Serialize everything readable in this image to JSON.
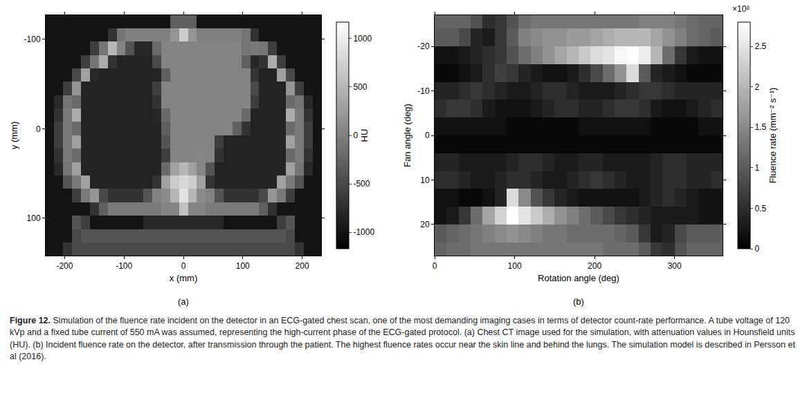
{
  "chart_data": [
    {
      "type": "heatmap",
      "label": "(a)",
      "x_label": "x (mm)",
      "y_label": "y (mm)",
      "color": "gray",
      "x": [
        -225,
        -210,
        -195,
        -180,
        -165,
        -150,
        -135,
        -120,
        -105,
        -90,
        -75,
        -60,
        -45,
        -30,
        -15,
        0,
        15,
        30,
        45,
        60,
        75,
        90,
        105,
        120,
        135,
        150,
        165,
        180,
        195,
        210,
        225
      ],
      "y": [
        -120,
        -105,
        -90,
        -75,
        -60,
        -45,
        -30,
        -15,
        0,
        15,
        30,
        45,
        60,
        75,
        90,
        105,
        120,
        135
      ],
      "cells": [
        [
          -1000,
          -1000,
          -1000,
          -1000,
          -1000,
          -1000,
          -1000,
          -1000,
          -1000,
          -1000,
          -1000,
          -1000,
          -1000,
          -1000,
          -300,
          -300,
          -300,
          -1000,
          -1000,
          -1000,
          -1000,
          -1000,
          -1000,
          -1000,
          -1000,
          -1000,
          -1000,
          -1000,
          -1000,
          -1000,
          -1000
        ],
        [
          -1000,
          -1000,
          -1000,
          -1000,
          -1000,
          -1000,
          -1000,
          -700,
          -100,
          0,
          0,
          0,
          0,
          0,
          200,
          700,
          200,
          0,
          0,
          0,
          0,
          0,
          -100,
          -700,
          -1000,
          -1000,
          -1000,
          -1000,
          -1000,
          -1000,
          -1000
        ],
        [
          -1000,
          -1000,
          -1000,
          -1000,
          -1000,
          -600,
          -100,
          500,
          40,
          -400,
          -800,
          -800,
          -200,
          40,
          40,
          40,
          40,
          40,
          40,
          40,
          40,
          40,
          -100,
          -50,
          -100,
          -600,
          -1000,
          -1000,
          -1000,
          -1000,
          -1000
        ],
        [
          -1000,
          -1000,
          -1000,
          -1000,
          -600,
          -100,
          400,
          -700,
          -850,
          -850,
          -850,
          -850,
          -500,
          40,
          40,
          40,
          40,
          40,
          40,
          40,
          40,
          40,
          -300,
          -800,
          -700,
          400,
          -600,
          -1000,
          -1000,
          -1000,
          -1000
        ],
        [
          -1000,
          -1000,
          -1000,
          -500,
          300,
          -800,
          -850,
          -850,
          -850,
          -850,
          -850,
          -850,
          -850,
          -300,
          40,
          40,
          40,
          40,
          40,
          40,
          40,
          40,
          40,
          -700,
          -850,
          -850,
          300,
          -500,
          -1000,
          -1000,
          -1000
        ],
        [
          -1000,
          -1000,
          -600,
          200,
          -850,
          -850,
          -850,
          -850,
          -850,
          -850,
          -850,
          -850,
          -600,
          40,
          40,
          40,
          40,
          40,
          40,
          40,
          40,
          40,
          40,
          -500,
          -850,
          -850,
          -850,
          200,
          -600,
          -1000,
          -1000
        ],
        [
          -1000,
          -800,
          -100,
          -200,
          -850,
          -850,
          -850,
          -850,
          -850,
          -850,
          -850,
          -850,
          -700,
          40,
          40,
          40,
          40,
          40,
          40,
          40,
          40,
          40,
          40,
          -600,
          -850,
          -850,
          -850,
          -200,
          -100,
          -800,
          -1000
        ],
        [
          -1000,
          -700,
          -50,
          400,
          -850,
          -850,
          -850,
          -850,
          -850,
          -850,
          -850,
          -850,
          -800,
          -200,
          40,
          40,
          40,
          40,
          40,
          40,
          40,
          40,
          -200,
          -850,
          -850,
          -850,
          -850,
          400,
          -50,
          -700,
          -1000
        ],
        [
          -1000,
          -600,
          -50,
          -200,
          -850,
          -850,
          -850,
          -850,
          -850,
          -850,
          -850,
          -850,
          -850,
          -300,
          40,
          40,
          40,
          40,
          40,
          40,
          40,
          -300,
          -700,
          -850,
          -850,
          -850,
          -850,
          -200,
          -50,
          -600,
          -1000
        ],
        [
          -1000,
          -600,
          -50,
          300,
          -850,
          -850,
          -850,
          -850,
          -850,
          -850,
          -850,
          -850,
          -850,
          -400,
          40,
          40,
          40,
          40,
          40,
          -600,
          -850,
          -850,
          -850,
          -850,
          -850,
          -850,
          -850,
          300,
          -50,
          -600,
          -1000
        ],
        [
          -1000,
          -700,
          -50,
          -200,
          -850,
          -850,
          -850,
          -850,
          -850,
          -850,
          -850,
          -850,
          -850,
          -600,
          40,
          40,
          40,
          60,
          40,
          -700,
          -850,
          -850,
          -850,
          -850,
          -850,
          -850,
          -850,
          -200,
          -50,
          -700,
          -1000
        ],
        [
          -1000,
          -800,
          -100,
          300,
          -850,
          -850,
          -850,
          -850,
          -850,
          -850,
          -850,
          -850,
          -850,
          -200,
          300,
          500,
          300,
          60,
          -400,
          -850,
          -850,
          -850,
          -850,
          -850,
          -850,
          -850,
          -850,
          300,
          -100,
          -800,
          -1000
        ],
        [
          -1000,
          -1000,
          -400,
          -50,
          300,
          -850,
          -850,
          -850,
          -850,
          -850,
          -850,
          -850,
          -700,
          300,
          700,
          800,
          700,
          300,
          -700,
          -850,
          -850,
          -850,
          -850,
          -850,
          -850,
          -850,
          300,
          -50,
          -400,
          -1000,
          -1000
        ],
        [
          -1000,
          -1000,
          -1000,
          -600,
          -50,
          200,
          -500,
          -700,
          -700,
          -700,
          -700,
          -400,
          40,
          100,
          500,
          900,
          500,
          100,
          40,
          -400,
          -700,
          -700,
          -700,
          -700,
          -500,
          200,
          -50,
          -600,
          -1000,
          -1000,
          -1000
        ],
        [
          -1000,
          -1000,
          -1000,
          -1000,
          -1000,
          -700,
          -300,
          -50,
          -50,
          -50,
          -50,
          -50,
          -50,
          40,
          40,
          600,
          40,
          40,
          -50,
          -50,
          -50,
          -50,
          -50,
          -50,
          -300,
          -700,
          -1000,
          -1000,
          -1000,
          -1000,
          -1000
        ],
        [
          -1000,
          -1000,
          -1000,
          -400,
          -600,
          -1000,
          -1000,
          -1000,
          -1000,
          -1000,
          -1000,
          -800,
          -800,
          -800,
          -800,
          -800,
          -800,
          -800,
          -800,
          -800,
          -1000,
          -1000,
          -1000,
          -1000,
          -1000,
          -1000,
          -600,
          -400,
          -1000,
          -1000,
          -1000
        ],
        [
          -1000,
          -1000,
          -1000,
          -500,
          -400,
          -400,
          -400,
          -400,
          -400,
          -400,
          -400,
          -400,
          -400,
          -400,
          -400,
          -400,
          -400,
          -400,
          -400,
          -400,
          -400,
          -400,
          -400,
          -400,
          -400,
          -400,
          -400,
          -500,
          -1000,
          -1000,
          -1000
        ],
        [
          -1000,
          -1000,
          -700,
          -500,
          -500,
          -500,
          -500,
          -500,
          -500,
          -500,
          -500,
          -500,
          -500,
          -500,
          -500,
          -500,
          -500,
          -500,
          -500,
          -500,
          -500,
          -500,
          -500,
          -500,
          -500,
          -500,
          -500,
          -500,
          -700,
          -1000,
          -1000
        ]
      ],
      "xlim": [
        -232,
        232
      ],
      "ylim": [
        142,
        -127
      ],
      "xticks": [
        -200,
        -100,
        0,
        100,
        200
      ],
      "yticks": [
        -100,
        0,
        100
      ],
      "colorbar": {
        "title": "HU",
        "range": [
          -1170,
          1170
        ],
        "ticks": [
          -1000,
          -500,
          0,
          500,
          1000
        ]
      }
    },
    {
      "type": "heatmap",
      "label": "(b)",
      "x_label": "Rotation angle (deg)",
      "y_label": "Fan angle (deg)",
      "color": "gray",
      "x": [
        7.5,
        22.5,
        37.5,
        52.5,
        67.5,
        82.5,
        97.5,
        112.5,
        127.5,
        142.5,
        157.5,
        172.5,
        187.5,
        202.5,
        217.5,
        232.5,
        247.5,
        262.5,
        277.5,
        292.5,
        307.5,
        322.5,
        337.5,
        352.5
      ],
      "y": [
        -26,
        -22,
        -18,
        -14,
        -10,
        -6,
        -2,
        2,
        6,
        10,
        14,
        18,
        22,
        26
      ],
      "cells": [
        [
          1.1,
          1.1,
          1.1,
          0.9,
          0.5,
          0.6,
          0.9,
          1.2,
          1.3,
          1.3,
          1.3,
          1.3,
          1.3,
          1.3,
          1.3,
          1.3,
          1.3,
          1.4,
          1.4,
          1.4,
          1.3,
          1.2,
          1.1,
          1.1
        ],
        [
          1.0,
          1.0,
          0.8,
          0.4,
          0.3,
          0.6,
          1.0,
          1.4,
          1.5,
          1.6,
          1.6,
          1.7,
          1.7,
          1.8,
          1.9,
          2.0,
          2.0,
          2.0,
          1.8,
          1.6,
          1.4,
          1.2,
          1.1,
          1.0
        ],
        [
          0.2,
          0.2,
          0.3,
          0.4,
          0.5,
          0.6,
          0.9,
          1.2,
          1.4,
          1.6,
          1.8,
          2.0,
          2.2,
          2.4,
          2.5,
          2.7,
          2.8,
          2.6,
          2.0,
          1.2,
          0.6,
          0.3,
          0.2,
          0.2
        ],
        [
          0.1,
          0.1,
          0.2,
          0.3,
          0.5,
          0.7,
          0.6,
          0.4,
          0.3,
          0.2,
          0.2,
          0.3,
          0.5,
          0.8,
          1.2,
          1.6,
          2.4,
          1.0,
          0.4,
          0.3,
          0.2,
          0.1,
          0.1,
          0.1
        ],
        [
          0.4,
          0.4,
          0.5,
          0.6,
          0.5,
          0.4,
          0.3,
          0.3,
          0.4,
          0.5,
          0.5,
          0.4,
          0.3,
          0.3,
          0.3,
          0.4,
          0.5,
          0.6,
          0.6,
          0.5,
          0.4,
          0.4,
          0.4,
          0.4
        ],
        [
          0.5,
          0.6,
          0.6,
          0.5,
          0.3,
          0.2,
          0.2,
          0.2,
          0.3,
          0.4,
          0.5,
          0.5,
          0.4,
          0.4,
          0.5,
          0.6,
          0.6,
          0.5,
          0.3,
          0.2,
          0.2,
          0.3,
          0.4,
          0.5
        ],
        [
          0.2,
          0.2,
          0.2,
          0.2,
          0.2,
          0.2,
          0.1,
          0.1,
          0.1,
          0.1,
          0.1,
          0.1,
          0.2,
          0.2,
          0.2,
          0.2,
          0.2,
          0.2,
          0.1,
          0.1,
          0.1,
          0.1,
          0.2,
          0.2
        ],
        [
          0.1,
          0.1,
          0.1,
          0.1,
          0.1,
          0.1,
          0.1,
          0.1,
          0.1,
          0.1,
          0.1,
          0.1,
          0.1,
          0.1,
          0.1,
          0.1,
          0.1,
          0.1,
          0.1,
          0.1,
          0.1,
          0.1,
          0.1,
          0.1
        ],
        [
          0.4,
          0.4,
          0.3,
          0.3,
          0.3,
          0.3,
          0.4,
          0.5,
          0.5,
          0.4,
          0.3,
          0.3,
          0.4,
          0.4,
          0.3,
          0.3,
          0.3,
          0.3,
          0.4,
          0.5,
          0.5,
          0.4,
          0.4,
          0.4
        ],
        [
          0.5,
          0.5,
          0.4,
          0.3,
          0.3,
          0.4,
          0.5,
          0.5,
          0.4,
          0.3,
          0.3,
          0.4,
          0.5,
          0.6,
          0.5,
          0.4,
          0.3,
          0.3,
          0.4,
          0.5,
          0.5,
          0.4,
          0.4,
          0.5
        ],
        [
          0.2,
          0.2,
          0.1,
          0.1,
          0.2,
          0.4,
          2.4,
          1.5,
          0.9,
          0.6,
          0.4,
          0.3,
          0.2,
          0.2,
          0.2,
          0.2,
          0.2,
          0.3,
          0.4,
          0.5,
          0.4,
          0.3,
          0.2,
          0.2
        ],
        [
          0.2,
          0.3,
          0.6,
          1.2,
          1.8,
          2.3,
          2.8,
          2.5,
          2.2,
          1.9,
          1.6,
          1.4,
          1.2,
          1.0,
          0.8,
          0.6,
          0.5,
          0.4,
          0.3,
          0.3,
          0.3,
          0.3,
          0.2,
          0.2
        ],
        [
          1.0,
          1.1,
          1.2,
          1.3,
          1.4,
          1.5,
          1.6,
          1.5,
          1.4,
          1.3,
          1.3,
          1.2,
          1.2,
          1.2,
          1.2,
          1.1,
          1.0,
          0.6,
          0.3,
          0.4,
          0.8,
          1.0,
          1.0,
          1.0
        ],
        [
          1.1,
          1.2,
          1.2,
          1.3,
          1.3,
          1.3,
          1.3,
          1.3,
          1.3,
          1.3,
          1.3,
          1.3,
          1.3,
          1.3,
          1.2,
          1.2,
          1.2,
          1.0,
          0.6,
          0.5,
          0.9,
          1.1,
          1.1,
          1.1
        ]
      ],
      "xlim": [
        0,
        360
      ],
      "ylim": [
        27,
        -27
      ],
      "xticks": [
        0,
        100,
        200,
        300
      ],
      "yticks": [
        -20,
        -10,
        0,
        10,
        20
      ],
      "colorbar": {
        "title": "Fluence rate (mm⁻² s⁻¹)",
        "range": [
          0,
          2.8
        ],
        "ticks": [
          0,
          0.5,
          1,
          1.5,
          2,
          2.5
        ],
        "scale_label": "×10⁸"
      }
    }
  ],
  "caption": {
    "label": "Figure 12.",
    "text": "Simulation of the fluence rate incident on the detector in an ECG-gated chest scan, one of the most demanding imaging cases in terms of detector count-rate performance. A tube voltage of 120 kVp and a fixed tube current of 550 mA was assumed, representing the high-current phase of the ECG-gated protocol. (a) Chest CT image used for the simulation, with attenuation values in Hounsfield units (HU). (b) Incident fluence rate on the detector, after transmission through the patient. The highest fluence rates occur near the skin line and behind the lungs. The simulation model is described in Persson et al (2016)."
  }
}
